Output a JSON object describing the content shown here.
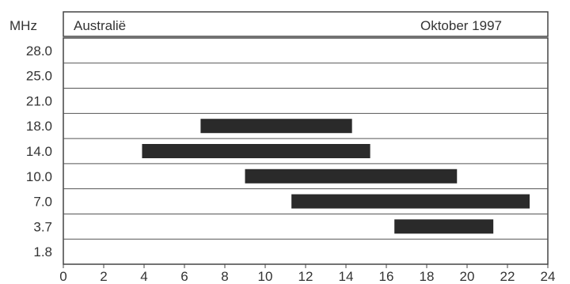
{
  "chart_data": {
    "type": "bar",
    "orientation": "horizontal-ranges",
    "title": "Australië",
    "subtitle": "Oktober 1997",
    "ylabel": "MHz",
    "xlabel": "",
    "categories": [
      "28.0",
      "25.0",
      "21.0",
      "18.0",
      "14.0",
      "10.0",
      "7.0",
      "3.7",
      "1.8"
    ],
    "x_ticks": [
      "0",
      "2",
      "4",
      "6",
      "8",
      "10",
      "12",
      "14",
      "16",
      "18",
      "20",
      "22",
      "24"
    ],
    "xlim": [
      0,
      24
    ],
    "grid": true,
    "legend": "none",
    "ranges": [
      {
        "band": "18.0",
        "start": 6.8,
        "end": 14.3
      },
      {
        "band": "14.0",
        "start": 3.9,
        "end": 15.2
      },
      {
        "band": "10.0",
        "start": 9.0,
        "end": 19.5
      },
      {
        "band": "7.0",
        "start": 11.3,
        "end": 23.1
      },
      {
        "band": "3.7",
        "start": 16.4,
        "end": 21.3
      }
    ],
    "colors": {
      "bar": "#2a2a2a",
      "grid": "#555555",
      "frame": "#444444",
      "text": "#333333"
    }
  }
}
